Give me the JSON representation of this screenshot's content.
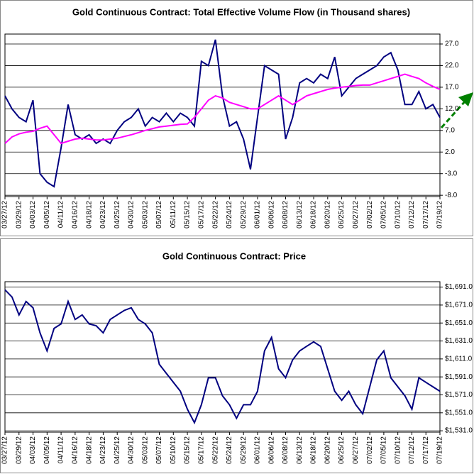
{
  "chart_data": [
    {
      "type": "line",
      "title": "Gold Continuous Contract: Total Effective Volume Flow (in Thousand shares)",
      "categories": [
        "03/27/12",
        null,
        "03/29/12",
        null,
        "04/03/12",
        null,
        "04/05/12",
        null,
        "04/11/12",
        null,
        "04/16/12",
        null,
        "04/18/12",
        null,
        "04/23/12",
        null,
        "04/25/12",
        null,
        "04/30/12",
        null,
        "05/03/12",
        null,
        "05/07/12",
        null,
        "05/11/12",
        null,
        "05/15/12",
        null,
        "05/17/12",
        null,
        "05/22/12",
        null,
        "05/24/12",
        null,
        "05/29/12",
        null,
        "06/01/12",
        null,
        "06/06/12",
        null,
        "06/08/12",
        null,
        "06/13/12",
        null,
        "06/18/12",
        null,
        "06/20/12",
        null,
        "06/25/12",
        null,
        "06/27/12",
        null,
        "07/02/12",
        null,
        "07/05/12",
        null,
        "07/10/12",
        null,
        "07/12/12",
        null,
        "07/17/12",
        null,
        "07/19/12"
      ],
      "series": [
        {
          "color": "#000080",
          "values": [
            15,
            12,
            10,
            9,
            14,
            -3,
            -5,
            -6,
            3,
            13,
            6,
            5,
            6,
            4,
            5,
            4,
            7,
            9,
            10,
            12,
            8,
            10,
            9,
            11,
            9,
            11,
            10,
            8,
            23,
            22,
            28,
            15,
            8,
            9,
            5,
            -2,
            10,
            22,
            21,
            20,
            5,
            10,
            18,
            19,
            18,
            20,
            19,
            24,
            15,
            17,
            19,
            20,
            21,
            22,
            24,
            25,
            21,
            13,
            13,
            16,
            12,
            13,
            10
          ]
        },
        {
          "color": "#ff00ff",
          "values": [
            4,
            5.5,
            6.2,
            6.6,
            6.8,
            7.5,
            8,
            6,
            4,
            4.5,
            5,
            5.2,
            5,
            4.8,
            4.8,
            5,
            5.2,
            5.6,
            6,
            6.5,
            7,
            7.4,
            7.8,
            8,
            8.2,
            8.4,
            8.5,
            10,
            12,
            14,
            15,
            14.5,
            13.5,
            13,
            12.5,
            12,
            12,
            13,
            14,
            15,
            14,
            13,
            14,
            15,
            15.5,
            16,
            16.5,
            16.8,
            17,
            17.2,
            17.4,
            17.5,
            17.5,
            18,
            18.5,
            19,
            19.5,
            20,
            19.5,
            19,
            18,
            17.2,
            16.5
          ]
        }
      ],
      "ylim": [
        -8.3,
        29.3
      ],
      "yticks": [
        {
          "value": -8,
          "label": "-8.0"
        },
        {
          "value": -3,
          "label": "-3.0"
        },
        {
          "value": 2,
          "label": "2.0"
        },
        {
          "value": 7,
          "label": "7.0"
        },
        {
          "value": 12,
          "label": "12.0"
        },
        {
          "value": 17,
          "label": "17.0"
        },
        {
          "value": 22,
          "label": "22.0"
        },
        {
          "value": 27,
          "label": "27.0"
        }
      ],
      "grid": true
    },
    {
      "type": "line",
      "title": "Gold Continuous Contract: Price",
      "categories": [
        "03/27/12",
        null,
        "03/29/12",
        null,
        "04/03/12",
        null,
        "04/05/12",
        null,
        "04/11/12",
        null,
        "04/16/12",
        null,
        "04/18/12",
        null,
        "04/23/12",
        null,
        "04/25/12",
        null,
        "04/30/12",
        null,
        "05/03/12",
        null,
        "05/07/12",
        null,
        "05/10/12",
        null,
        "05/15/12",
        null,
        "05/17/12",
        null,
        "05/22/12",
        null,
        "05/24/12",
        null,
        "05/29/12",
        null,
        "06/01/12",
        null,
        "06/06/12",
        null,
        "06/08/12",
        null,
        "06/13/12",
        null,
        "06/18/12",
        null,
        "06/20/12",
        null,
        "06/25/12",
        null,
        "06/27/12",
        null,
        "07/02/12",
        null,
        "07/05/12",
        null,
        "07/10/12",
        null,
        "07/12/12",
        null,
        "07/17/12",
        null,
        "07/19/12"
      ],
      "series": [
        {
          "color": "#000080",
          "values": [
            1688,
            1680,
            1660,
            1675,
            1668,
            1640,
            1620,
            1645,
            1650,
            1675,
            1655,
            1660,
            1650,
            1648,
            1640,
            1655,
            1660,
            1665,
            1668,
            1655,
            1650,
            1640,
            1605,
            1595,
            1585,
            1575,
            1555,
            1540,
            1560,
            1590,
            1590,
            1570,
            1560,
            1545,
            1560,
            1560,
            1575,
            1620,
            1635,
            1600,
            1590,
            1610,
            1620,
            1625,
            1630,
            1625,
            1600,
            1575,
            1565,
            1575,
            1560,
            1550,
            1580,
            1610,
            1620,
            1590,
            1580,
            1570,
            1555,
            1590,
            1585,
            1580,
            1575
          ]
        }
      ],
      "ylim": [
        1529.5,
        1697
      ],
      "yticks": [
        {
          "value": 1531,
          "label": "$1,531.0"
        },
        {
          "value": 1551,
          "label": "$1,551.0"
        },
        {
          "value": 1571,
          "label": "$1,571.0"
        },
        {
          "value": 1591,
          "label": "$1,591.0"
        },
        {
          "value": 1611,
          "label": "$1,611.0"
        },
        {
          "value": 1631,
          "label": "$1,631.0"
        },
        {
          "value": 1651,
          "label": "$1,651.0"
        },
        {
          "value": 1671,
          "label": "$1,671.0"
        },
        {
          "value": 1691,
          "label": "$1,691.0"
        }
      ],
      "grid": true
    }
  ]
}
